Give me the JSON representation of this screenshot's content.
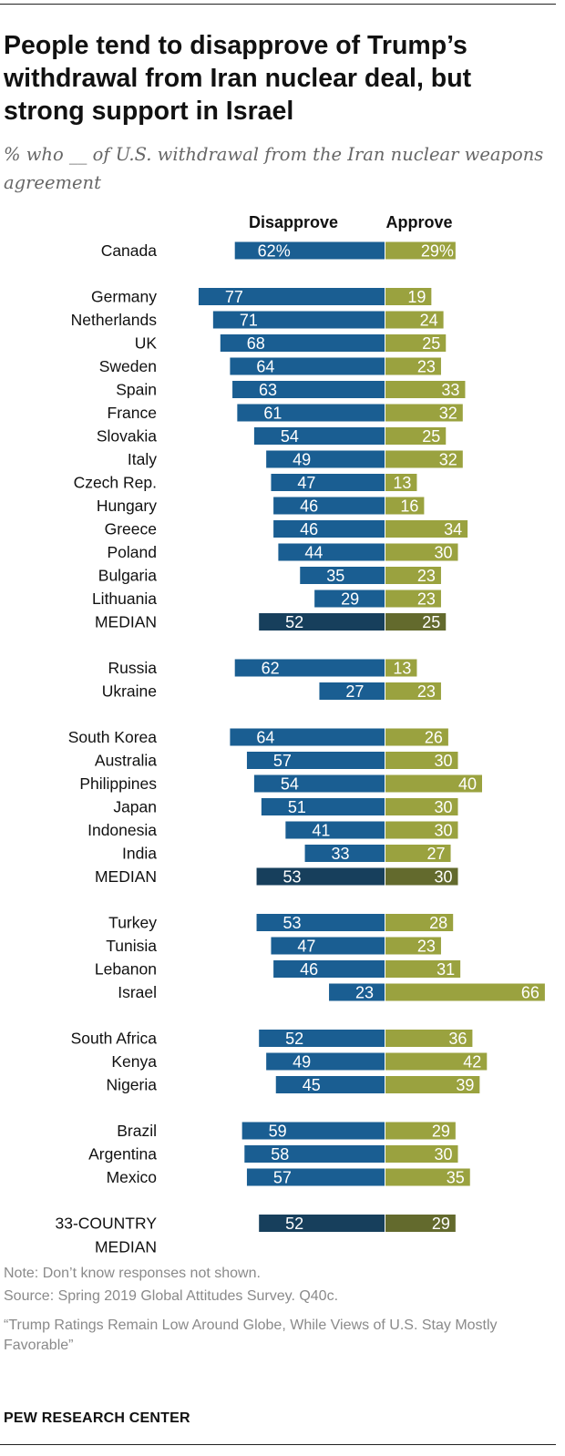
{
  "title": "People tend to disapprove of Trump’s withdrawal from Iran nuclear deal, but strong support in Israel",
  "subtitle": "% who __ of U.S. withdrawal from the Iran nuclear weapons agreement",
  "notes": {
    "note": "Note: Don’t know responses not shown.",
    "source": "Source: Spring 2019 Global Attitudes Survey. Q40c.",
    "report": "“Trump Ratings Remain Low Around Globe, While Views of U.S. Stay Mostly Favorable”"
  },
  "brand": "PEW RESEARCH CENTER",
  "colors": {
    "disapprove": "#1a5e92",
    "approve": "#9aa23f",
    "disapprove_median": "#173f5c",
    "approve_median": "#636a2d"
  },
  "chart_data": {
    "type": "bar",
    "orientation": "horizontal-diverging",
    "series": [
      {
        "name": "Disapprove",
        "values": [
          62,
          77,
          71,
          68,
          64,
          63,
          61,
          54,
          49,
          47,
          46,
          46,
          44,
          35,
          29,
          52,
          62,
          27,
          64,
          57,
          54,
          51,
          41,
          33,
          53,
          53,
          47,
          46,
          23,
          52,
          49,
          45,
          59,
          58,
          57,
          52
        ]
      },
      {
        "name": "Approve",
        "values": [
          29,
          19,
          24,
          25,
          23,
          33,
          32,
          25,
          32,
          13,
          16,
          34,
          30,
          23,
          23,
          25,
          13,
          23,
          26,
          30,
          40,
          30,
          30,
          27,
          30,
          28,
          23,
          31,
          66,
          36,
          42,
          39,
          29,
          30,
          35,
          29
        ]
      }
    ],
    "rows": [
      {
        "label": "Canada",
        "d": 62,
        "a": 29,
        "suffix": "%",
        "group": 0
      },
      {
        "label": "Germany",
        "d": 77,
        "a": 19,
        "group": 1
      },
      {
        "label": "Netherlands",
        "d": 71,
        "a": 24,
        "group": 1
      },
      {
        "label": "UK",
        "d": 68,
        "a": 25,
        "group": 1
      },
      {
        "label": "Sweden",
        "d": 64,
        "a": 23,
        "group": 1
      },
      {
        "label": "Spain",
        "d": 63,
        "a": 33,
        "group": 1
      },
      {
        "label": "France",
        "d": 61,
        "a": 32,
        "group": 1
      },
      {
        "label": "Slovakia",
        "d": 54,
        "a": 25,
        "group": 1
      },
      {
        "label": "Italy",
        "d": 49,
        "a": 32,
        "group": 1
      },
      {
        "label": "Czech Rep.",
        "d": 47,
        "a": 13,
        "group": 1
      },
      {
        "label": "Hungary",
        "d": 46,
        "a": 16,
        "group": 1
      },
      {
        "label": "Greece",
        "d": 46,
        "a": 34,
        "group": 1
      },
      {
        "label": "Poland",
        "d": 44,
        "a": 30,
        "group": 1
      },
      {
        "label": "Bulgaria",
        "d": 35,
        "a": 23,
        "group": 1
      },
      {
        "label": "Lithuania",
        "d": 29,
        "a": 23,
        "group": 1
      },
      {
        "label": "MEDIAN",
        "d": 52,
        "a": 25,
        "median": true,
        "group": 1
      },
      {
        "label": "Russia",
        "d": 62,
        "a": 13,
        "group": 2
      },
      {
        "label": "Ukraine",
        "d": 27,
        "a": 23,
        "group": 2
      },
      {
        "label": "South Korea",
        "d": 64,
        "a": 26,
        "group": 3
      },
      {
        "label": "Australia",
        "d": 57,
        "a": 30,
        "group": 3
      },
      {
        "label": "Philippines",
        "d": 54,
        "a": 40,
        "group": 3
      },
      {
        "label": "Japan",
        "d": 51,
        "a": 30,
        "group": 3
      },
      {
        "label": "Indonesia",
        "d": 41,
        "a": 30,
        "group": 3
      },
      {
        "label": "India",
        "d": 33,
        "a": 27,
        "group": 3
      },
      {
        "label": "MEDIAN",
        "d": 53,
        "a": 30,
        "median": true,
        "group": 3
      },
      {
        "label": "Turkey",
        "d": 53,
        "a": 28,
        "group": 4
      },
      {
        "label": "Tunisia",
        "d": 47,
        "a": 23,
        "group": 4
      },
      {
        "label": "Lebanon",
        "d": 46,
        "a": 31,
        "group": 4
      },
      {
        "label": "Israel",
        "d": 23,
        "a": 66,
        "group": 4
      },
      {
        "label": "South Africa",
        "d": 52,
        "a": 36,
        "group": 5
      },
      {
        "label": "Kenya",
        "d": 49,
        "a": 42,
        "group": 5
      },
      {
        "label": "Nigeria",
        "d": 45,
        "a": 39,
        "group": 5
      },
      {
        "label": "Brazil",
        "d": 59,
        "a": 29,
        "group": 6
      },
      {
        "label": "Argentina",
        "d": 58,
        "a": 30,
        "group": 6
      },
      {
        "label": "Mexico",
        "d": 57,
        "a": 35,
        "group": 6
      },
      {
        "label": "33-COUNTRY MEDIAN",
        "label_lines": [
          "33-COUNTRY",
          "MEDIAN"
        ],
        "d": 52,
        "a": 29,
        "median": true,
        "group": 7
      }
    ],
    "headers": {
      "disapprove": "Disapprove",
      "approve": "Approve"
    },
    "title": "People tend to disapprove of Trump’s withdrawal from Iran nuclear deal, but strong support in Israel",
    "xlabel": "",
    "ylabel": "",
    "xlim": [
      -80,
      70
    ]
  }
}
